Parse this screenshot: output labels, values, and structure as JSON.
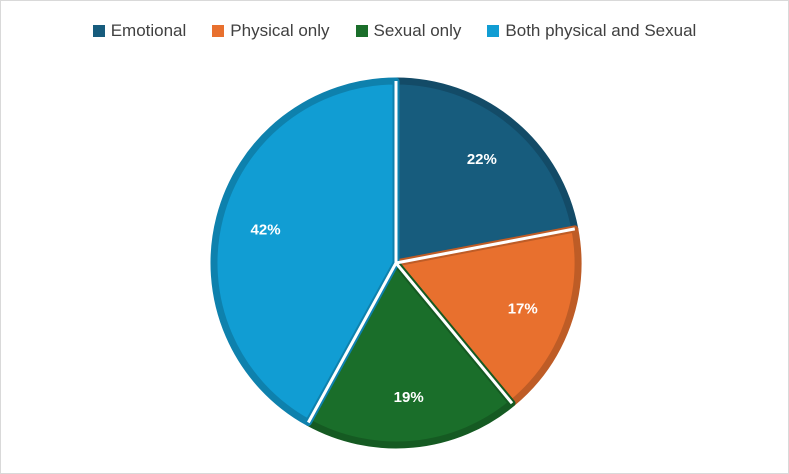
{
  "chart_data": {
    "type": "pie",
    "title": "",
    "legend_position": "top",
    "slices": [
      {
        "name": "Emotional",
        "value": 22,
        "label": "22%",
        "color": "#175c7d"
      },
      {
        "name": "Physical only",
        "value": 17,
        "label": "17%",
        "color": "#e8702e"
      },
      {
        "name": "Sexual only",
        "value": 19,
        "label": "19%",
        "color": "#1a6e2a"
      },
      {
        "name": "Both physical and Sexual",
        "value": 42,
        "label": "42%",
        "color": "#119dd3"
      }
    ]
  }
}
